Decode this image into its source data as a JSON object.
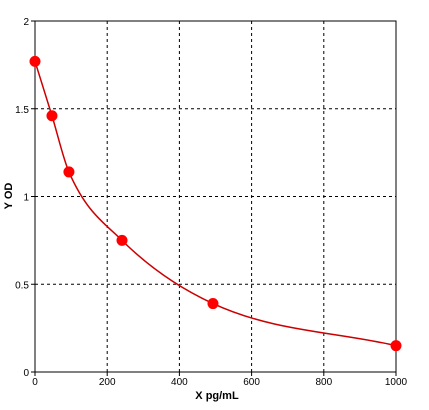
{
  "chart_data": {
    "type": "scatter",
    "title": "",
    "xlabel": "X pg/mL",
    "ylabel": "Y OD",
    "xlim": [
      0,
      1000
    ],
    "ylim": [
      0,
      2
    ],
    "x_ticks": [
      "0",
      "200",
      "400",
      "600",
      "800",
      "1000"
    ],
    "y_ticks": [
      "0",
      "0.5",
      "1",
      "1.5",
      "2"
    ],
    "grid": true,
    "grid_style": "dashed",
    "legend": "none",
    "colors": {
      "points": "#ff0000",
      "curve": "#cc0000",
      "grid": "#000000",
      "axes": "#000000"
    },
    "series": [
      {
        "x": [
          0,
          47,
          94,
          241,
          493,
          1000
        ],
        "y": [
          1.77,
          1.46,
          1.14,
          0.75,
          0.39,
          0.15
        ]
      }
    ],
    "fitted_curve": true
  }
}
